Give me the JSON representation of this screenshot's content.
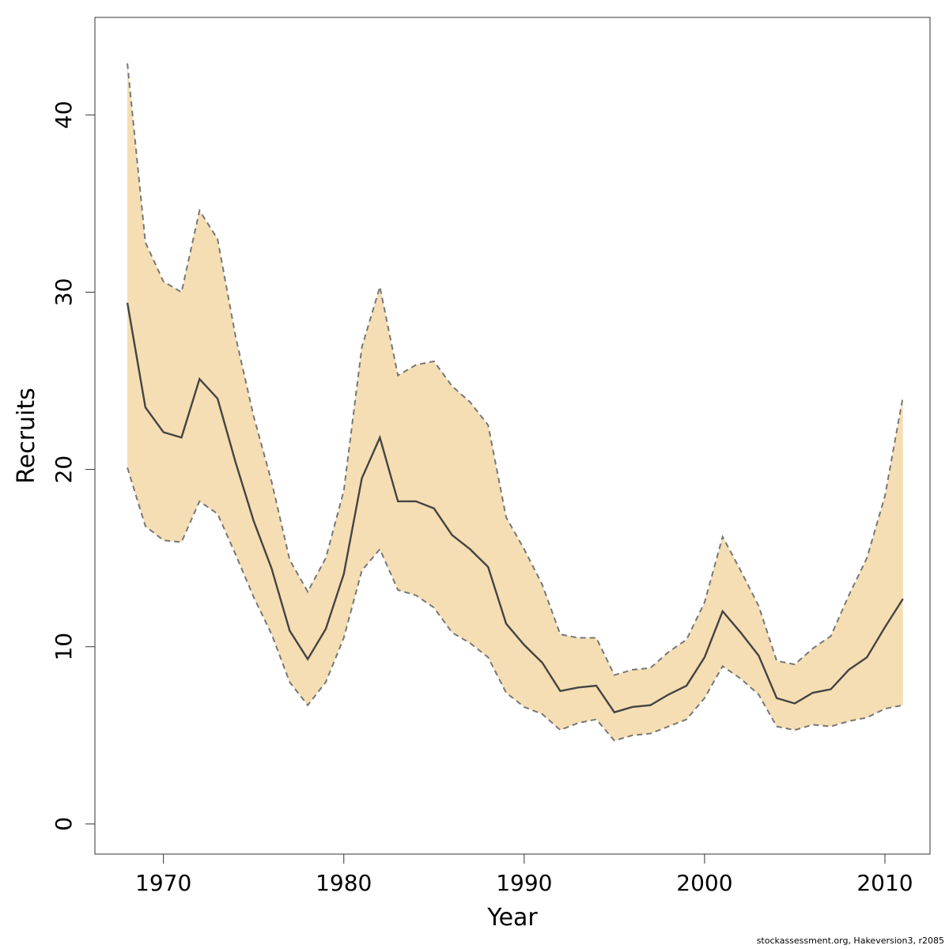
{
  "chart_data": {
    "type": "area",
    "xlabel": "Year",
    "ylabel": "Recruits",
    "xlim": [
      1966.2,
      2012.5
    ],
    "ylim": [
      -1.7,
      45.5
    ],
    "xticks": [
      1970,
      1980,
      1990,
      2000,
      2010
    ],
    "yticks": [
      0,
      10,
      20,
      30,
      40
    ],
    "grid": false,
    "colors": {
      "band": "#f5deb3",
      "median": "#444444",
      "bounds": "#777777",
      "frame": "#333333"
    },
    "x": [
      1968,
      1969,
      1970,
      1971,
      1972,
      1973,
      1974,
      1975,
      1976,
      1977,
      1978,
      1979,
      1980,
      1981,
      1982,
      1983,
      1984,
      1985,
      1986,
      1987,
      1988,
      1989,
      1990,
      1991,
      1992,
      1993,
      1994,
      1995,
      1996,
      1997,
      1998,
      1999,
      2000,
      2001,
      2002,
      2003,
      2004,
      2005,
      2006,
      2007,
      2008,
      2009,
      2010,
      2011
    ],
    "series": [
      {
        "role": "upper",
        "values": [
          42.9,
          32.8,
          30.6,
          30.0,
          34.6,
          33.0,
          27.5,
          23.0,
          19.3,
          14.9,
          13.1,
          15.0,
          18.8,
          26.9,
          30.3,
          25.3,
          25.9,
          26.1,
          24.7,
          23.8,
          22.5,
          17.3,
          15.5,
          13.5,
          10.7,
          10.5,
          10.5,
          8.4,
          8.7,
          8.8,
          9.7,
          10.4,
          12.5,
          16.2,
          14.3,
          12.3,
          9.2,
          9.0,
          9.9,
          10.6,
          12.9,
          15.0,
          18.5,
          24.1
        ]
      },
      {
        "role": "median",
        "values": [
          29.4,
          23.5,
          22.1,
          21.8,
          25.1,
          24.0,
          20.4,
          17.1,
          14.4,
          10.9,
          9.3,
          11.0,
          14.1,
          19.5,
          21.8,
          18.2,
          18.2,
          17.8,
          16.3,
          15.5,
          14.5,
          11.3,
          10.1,
          9.1,
          7.5,
          7.7,
          7.8,
          6.3,
          6.6,
          6.7,
          7.3,
          7.8,
          9.4,
          12.0,
          10.8,
          9.5,
          7.1,
          6.8,
          7.4,
          7.6,
          8.7,
          9.4,
          11.1,
          12.7
        ]
      },
      {
        "role": "lower",
        "values": [
          20.1,
          16.8,
          16.0,
          15.9,
          18.2,
          17.5,
          15.2,
          12.8,
          10.7,
          8.0,
          6.7,
          8.0,
          10.5,
          14.3,
          15.5,
          13.2,
          12.9,
          12.2,
          10.8,
          10.2,
          9.4,
          7.4,
          6.6,
          6.2,
          5.3,
          5.7,
          5.9,
          4.7,
          5.0,
          5.1,
          5.5,
          5.9,
          7.1,
          8.9,
          8.2,
          7.3,
          5.5,
          5.3,
          5.6,
          5.5,
          5.8,
          6.0,
          6.5,
          6.7
        ]
      }
    ]
  },
  "footer": {
    "credit": "stockassessment.org, Hakeversion3, r2085"
  }
}
